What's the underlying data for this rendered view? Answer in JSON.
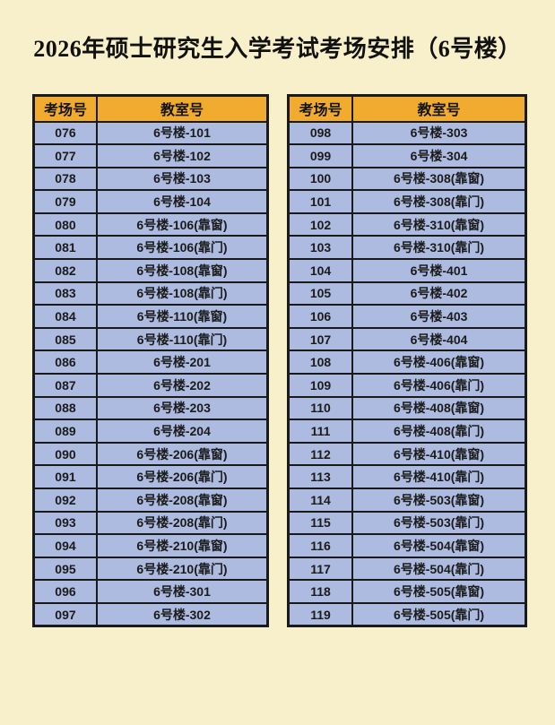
{
  "page": {
    "title": "2026年硕士研究生入学考试考场安排（6号楼）"
  },
  "colors": {
    "page-bg": "#f7f0ca",
    "header-bg": "#f1ac2f",
    "row-bg": "#aebbe0",
    "border-color": "#1a1a1a"
  },
  "table": {
    "headers": {
      "room_no": "考场号",
      "classroom_no": "教室号"
    },
    "left_rows": [
      {
        "no": "076",
        "room": "6号楼-101"
      },
      {
        "no": "077",
        "room": "6号楼-102"
      },
      {
        "no": "078",
        "room": "6号楼-103"
      },
      {
        "no": "079",
        "room": "6号楼-104"
      },
      {
        "no": "080",
        "room": "6号楼-106(靠窗)"
      },
      {
        "no": "081",
        "room": "6号楼-106(靠门)"
      },
      {
        "no": "082",
        "room": "6号楼-108(靠窗)"
      },
      {
        "no": "083",
        "room": "6号楼-108(靠门)"
      },
      {
        "no": "084",
        "room": "6号楼-110(靠窗)"
      },
      {
        "no": "085",
        "room": "6号楼-110(靠门)"
      },
      {
        "no": "086",
        "room": "6号楼-201"
      },
      {
        "no": "087",
        "room": "6号楼-202"
      },
      {
        "no": "088",
        "room": "6号楼-203"
      },
      {
        "no": "089",
        "room": "6号楼-204"
      },
      {
        "no": "090",
        "room": "6号楼-206(靠窗)"
      },
      {
        "no": "091",
        "room": "6号楼-206(靠门)"
      },
      {
        "no": "092",
        "room": "6号楼-208(靠窗)"
      },
      {
        "no": "093",
        "room": "6号楼-208(靠门)"
      },
      {
        "no": "094",
        "room": "6号楼-210(靠窗)"
      },
      {
        "no": "095",
        "room": "6号楼-210(靠门)"
      },
      {
        "no": "096",
        "room": "6号楼-301"
      },
      {
        "no": "097",
        "room": "6号楼-302"
      }
    ],
    "right_rows": [
      {
        "no": "098",
        "room": "6号楼-303"
      },
      {
        "no": "099",
        "room": "6号楼-304"
      },
      {
        "no": "100",
        "room": "6号楼-308(靠窗)"
      },
      {
        "no": "101",
        "room": "6号楼-308(靠门)"
      },
      {
        "no": "102",
        "room": "6号楼-310(靠窗)"
      },
      {
        "no": "103",
        "room": "6号楼-310(靠门)"
      },
      {
        "no": "104",
        "room": "6号楼-401"
      },
      {
        "no": "105",
        "room": "6号楼-402"
      },
      {
        "no": "106",
        "room": "6号楼-403"
      },
      {
        "no": "107",
        "room": "6号楼-404"
      },
      {
        "no": "108",
        "room": "6号楼-406(靠窗)"
      },
      {
        "no": "109",
        "room": "6号楼-406(靠门)"
      },
      {
        "no": "110",
        "room": "6号楼-408(靠窗)"
      },
      {
        "no": "111",
        "room": "6号楼-408(靠门)"
      },
      {
        "no": "112",
        "room": "6号楼-410(靠窗)"
      },
      {
        "no": "113",
        "room": "6号楼-410(靠门)"
      },
      {
        "no": "114",
        "room": "6号楼-503(靠窗)"
      },
      {
        "no": "115",
        "room": "6号楼-503(靠门)"
      },
      {
        "no": "116",
        "room": "6号楼-504(靠窗)"
      },
      {
        "no": "117",
        "room": "6号楼-504(靠门)"
      },
      {
        "no": "118",
        "room": "6号楼-505(靠窗)"
      },
      {
        "no": "119",
        "room": "6号楼-505(靠门)"
      }
    ]
  }
}
